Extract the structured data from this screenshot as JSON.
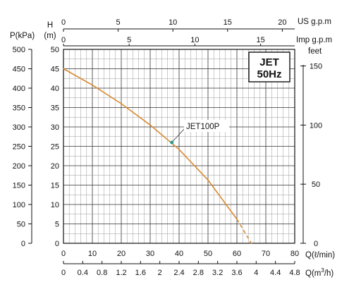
{
  "chart_data": {
    "type": "line",
    "title": "JET",
    "subtitle": "50Hz",
    "series": [
      {
        "name": "JET100P",
        "x": [
          0,
          10,
          20,
          30,
          40,
          50,
          60,
          65
        ],
        "y": [
          45,
          40.8,
          36,
          30.5,
          24.2,
          16.3,
          6.2,
          0
        ],
        "dashed_from_x": 60
      }
    ],
    "axes": {
      "h_m": {
        "label_top": "H",
        "label_bottom": "(m)",
        "range": [
          0,
          50
        ],
        "ticks": [
          "0",
          "5",
          "10",
          "15",
          "20",
          "25",
          "30",
          "35",
          "40",
          "45",
          "50"
        ]
      },
      "p_kpa": {
        "label": "P(kPa)",
        "ticks": [
          "0",
          "50",
          "100",
          "150",
          "200",
          "250",
          "300",
          "350",
          "400",
          "450",
          "500"
        ]
      },
      "feet": {
        "label": "feet",
        "ticks": [
          "0",
          "50",
          "100",
          "150"
        ]
      },
      "q_l_min": {
        "label": "Q(ℓ/min)",
        "range": [
          0,
          80
        ],
        "ticks": [
          "0",
          "10",
          "20",
          "30",
          "40",
          "50",
          "60",
          "70",
          "80"
        ]
      },
      "q_m3_h": {
        "label": "Q(m",
        "label_sup": "3",
        "label_end": "/h)",
        "ticks": [
          "0",
          "0.4",
          "0.8",
          "1.2",
          "1.6",
          "2",
          "2.4",
          "2.8",
          "3.2",
          "3.6",
          "4",
          "4.4",
          "4.8"
        ]
      },
      "us_gpm": {
        "label": "US g.p.m",
        "ticks": [
          "0",
          "5",
          "10",
          "15",
          "20"
        ]
      },
      "imp_gpm": {
        "label": "Imp g.p.m",
        "ticks": [
          "0",
          "5",
          "10",
          "15"
        ]
      }
    },
    "grid": true,
    "legend": "top-right",
    "colors": {
      "curve": "#d9892f",
      "marker": "#2a9d8f",
      "grid": "#9a9a9a"
    }
  }
}
